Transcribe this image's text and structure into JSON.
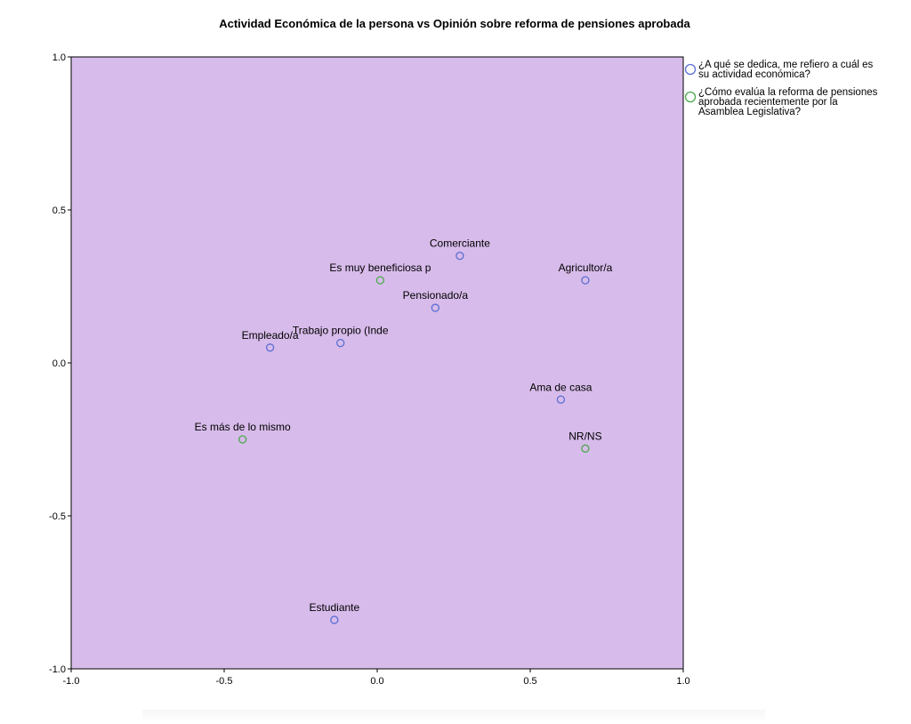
{
  "chart_data": {
    "type": "scatter",
    "title": "Actividad Económica de la persona vs Opinión sobre reforma de pensiones aprobada",
    "xlabel": "",
    "ylabel": "",
    "xlim": [
      -1.0,
      1.0
    ],
    "ylim": [
      -1.0,
      1.0
    ],
    "x_ticks": [
      "-1.0",
      "-0.5",
      "0.0",
      "0.5",
      "1.0"
    ],
    "y_ticks": [
      "1.0",
      "0.5",
      "0.0",
      "-0.5",
      "-1.0"
    ],
    "grid": false,
    "legend_position": "right",
    "plot_background": "#d7bbea",
    "series": [
      {
        "name": "¿A qué se dedica, me refiero a cuál es su actividad económica?",
        "legend_lines": [
          "¿A qué se dedica, me refiero a cuál es",
          "su actividad económica?"
        ],
        "color": "#5a6ed4",
        "points": [
          {
            "label": "Comerciante",
            "x": 0.27,
            "y": 0.35
          },
          {
            "label": "Agricultor/a",
            "x": 0.68,
            "y": 0.27
          },
          {
            "label": "Pensionado/a",
            "x": 0.19,
            "y": 0.18
          },
          {
            "label": "Empleado/a",
            "x": -0.35,
            "y": 0.05
          },
          {
            "label": "Trabajo propio (Inde",
            "x": -0.12,
            "y": 0.065
          },
          {
            "label": "Ama de casa",
            "x": 0.6,
            "y": -0.12
          },
          {
            "label": "Estudiante",
            "x": -0.14,
            "y": -0.84
          }
        ]
      },
      {
        "name": "¿Cómo evalúa la reforma de pensiones aprobada recientemente por la Asamblea Legislativa?",
        "legend_lines": [
          "¿Cómo evalúa la reforma de pensiones",
          "aprobada recientemente por la",
          "Asamblea Legislativa?"
        ],
        "color": "#4caa4c",
        "points": [
          {
            "label": "Es muy beneficiosa p",
            "x": 0.01,
            "y": 0.27
          },
          {
            "label": "Es más de lo mismo",
            "x": -0.44,
            "y": -0.25
          },
          {
            "label": "NR/NS",
            "x": 0.68,
            "y": -0.28
          }
        ]
      }
    ]
  }
}
